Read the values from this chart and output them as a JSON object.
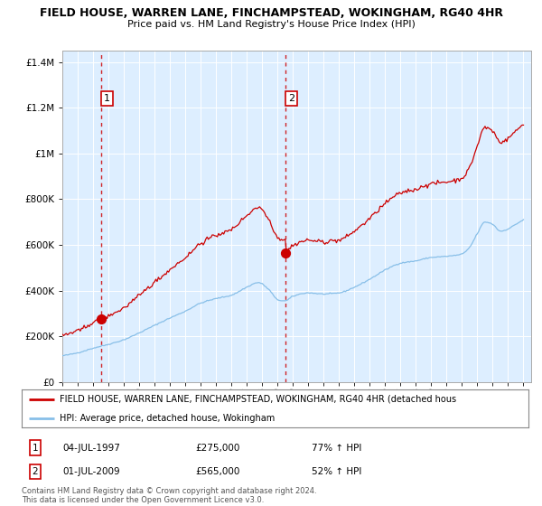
{
  "title1": "FIELD HOUSE, WARREN LANE, FINCHAMPSTEAD, WOKINGHAM, RG40 4HR",
  "title2": "Price paid vs. HM Land Registry's House Price Index (HPI)",
  "legend_line1": "FIELD HOUSE, WARREN LANE, FINCHAMPSTEAD, WOKINGHAM, RG40 4HR (detached hous",
  "legend_line2": "HPI: Average price, detached house, Wokingham",
  "annotation1_date": "04-JUL-1997",
  "annotation1_price": "£275,000",
  "annotation1_hpi": "77% ↑ HPI",
  "annotation2_date": "01-JUL-2009",
  "annotation2_price": "£565,000",
  "annotation2_hpi": "52% ↑ HPI",
  "copyright_text": "Contains HM Land Registry data © Crown copyright and database right 2024.\nThis data is licensed under the Open Government Licence v3.0.",
  "sale1_year": 1997.5,
  "sale1_value": 275000,
  "sale2_year": 2009.5,
  "sale2_value": 565000,
  "hpi_color": "#88bfe8",
  "price_color": "#cc0000",
  "dashed_color": "#cc0000",
  "plot_bg": "#ddeeff",
  "ylim": [
    0,
    1450000
  ],
  "xlim_start": 1995.0,
  "xlim_end": 2025.5,
  "yticks": [
    0,
    200000,
    400000,
    600000,
    800000,
    1000000,
    1200000,
    1400000
  ],
  "title1_fontsize": 9.5,
  "title2_fontsize": 8.5
}
